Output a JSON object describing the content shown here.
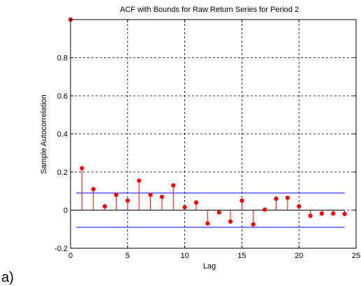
{
  "panel_label": "a)",
  "chart_data": {
    "type": "stem",
    "title": "ACF with Bounds for Raw Return Series for Period 2",
    "xlabel": "Lag",
    "ylabel": "Sample Autocorrelation",
    "xlim": [
      0,
      25
    ],
    "ylim": [
      -0.2,
      1.0
    ],
    "xticks": [
      "0",
      "5",
      "10",
      "15",
      "20",
      "25"
    ],
    "yticks": [
      "-0.2",
      "0",
      "0.2",
      "0.4",
      "0.6",
      "0.8"
    ],
    "grid": true,
    "x": [
      0,
      1,
      2,
      3,
      4,
      5,
      6,
      7,
      8,
      9,
      10,
      11,
      12,
      13,
      14,
      15,
      16,
      17,
      18,
      19,
      20,
      21,
      22,
      23,
      24
    ],
    "values": [
      1.0,
      0.22,
      0.11,
      0.02,
      0.08,
      0.05,
      0.155,
      0.08,
      0.07,
      0.13,
      0.015,
      0.04,
      -0.07,
      -0.012,
      -0.06,
      0.05,
      -0.075,
      0.003,
      0.06,
      0.065,
      0.02,
      -0.03,
      -0.018,
      -0.018,
      -0.02
    ],
    "bounds": [
      0.09,
      -0.09
    ],
    "colors": {
      "stem": "#ff0000",
      "bounds": "#0000ff",
      "axes": "#000000"
    }
  }
}
